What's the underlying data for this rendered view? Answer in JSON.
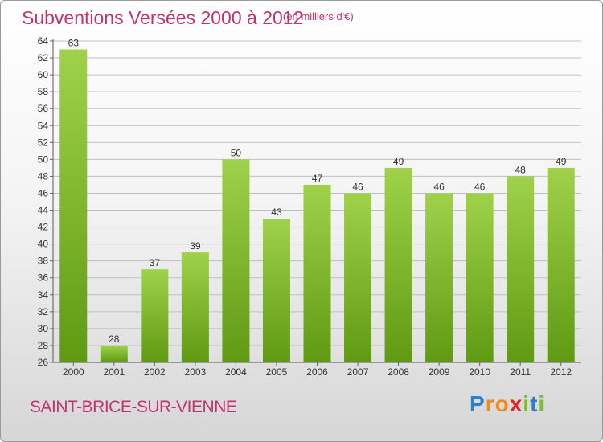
{
  "title": "Subventions Versées 2000 à 2012",
  "subtitle": "(en milliers d'€)",
  "commune": "SAINT-BRICE-SUR-VIENNE",
  "logo": {
    "letters": [
      "P",
      "r",
      "o",
      "x",
      "i",
      "t",
      "i"
    ],
    "colors": [
      "#2f7fc8",
      "#f08a1c",
      "#f08a1c",
      "#e2242a",
      "#7bbf2a",
      "#2f7fc8",
      "#7bbf2a"
    ]
  },
  "colors": {
    "bar_light": "#9fd24a",
    "bar_dark": "#5f9a12",
    "grid": "#bfbfbf",
    "text": "#333333",
    "accent": "#c0336f"
  },
  "chart_data": {
    "type": "bar",
    "categories": [
      "2000",
      "2001",
      "2002",
      "2003",
      "2004",
      "2005",
      "2006",
      "2007",
      "2008",
      "2009",
      "2010",
      "2011",
      "2012"
    ],
    "values": [
      63,
      28,
      37,
      39,
      50,
      43,
      47,
      46,
      49,
      46,
      46,
      48,
      49
    ],
    "ylim": [
      26,
      64
    ],
    "yticks": [
      26,
      28,
      30,
      32,
      34,
      36,
      38,
      40,
      42,
      44,
      46,
      48,
      50,
      52,
      54,
      56,
      58,
      60,
      62,
      64
    ],
    "grid": true,
    "title": "Subventions Versées 2000 à 2012"
  }
}
